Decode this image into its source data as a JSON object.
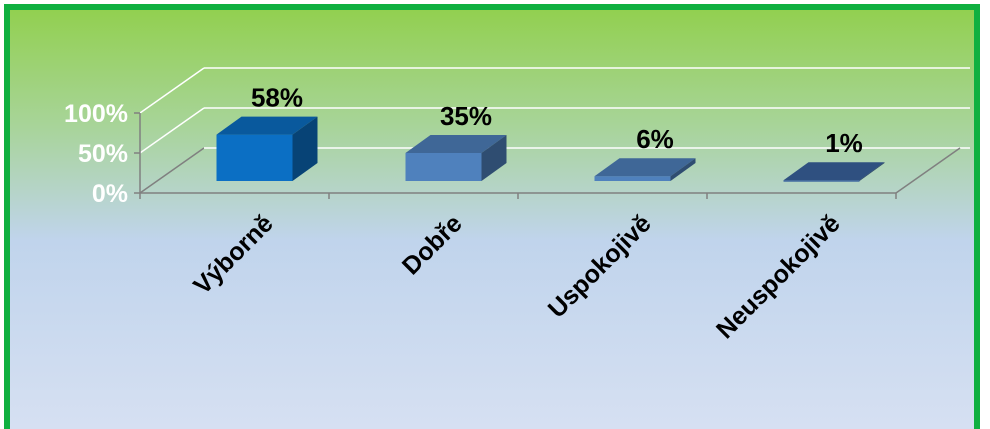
{
  "chart_data": {
    "type": "bar",
    "title": "",
    "xlabel": "",
    "ylabel": "",
    "categories": [
      "Výborně",
      "Dobře",
      "Uspokojivě",
      "Neuspokojivě"
    ],
    "values": [
      58,
      35,
      6,
      1
    ],
    "data_labels": [
      "58%",
      "35%",
      "6%",
      "1%"
    ],
    "y_ticks": [
      "0%",
      "50%",
      "100%"
    ],
    "ylim": [
      0,
      100
    ],
    "grid": true,
    "style": "3d-column",
    "colors": {
      "bars": [
        "#0b6fc4",
        "#4f81bd",
        "#4f81bd",
        "#3b64a0"
      ],
      "frame_border": "#10b040",
      "grid_lines": "#ffffff",
      "axis": "#808080"
    }
  }
}
